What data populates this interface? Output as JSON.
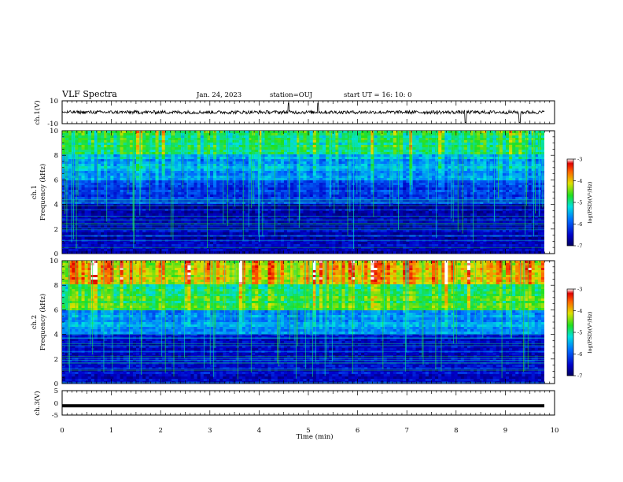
{
  "header": {
    "title": "VLF Spectra",
    "date": "Jan. 24, 2023",
    "station": "station=OUJ",
    "start_ut": "start  UT =   16: 10: 0"
  },
  "chart_data": [
    {
      "type": "line",
      "title": "",
      "ylabel": "ch.1(V)",
      "ylim": [
        -10,
        10
      ],
      "y_ticks": [
        "10",
        "-10"
      ],
      "xlim": [
        0,
        10
      ],
      "series": [
        {
          "values_description_free": true,
          "baseline": 0,
          "noise_amplitude": 1.5,
          "spikes_at_min": [
            4.6,
            5.2,
            8.2,
            9.3
          ]
        }
      ]
    },
    {
      "type": "heatmap",
      "ylabel": "ch.1",
      "ylabel2": "Frequency (kHz)",
      "ylim": [
        0,
        10
      ],
      "y_ticks": [
        "10",
        "8",
        "6",
        "4",
        "2",
        "0"
      ],
      "xlim": [
        0,
        10
      ],
      "colorbar": {
        "label": "log(PSD)(V²/Hz)",
        "range": [
          -7,
          -3
        ],
        "ticks": [
          "-3",
          "-4",
          "-5",
          "-6",
          "-7"
        ]
      },
      "bands_khz": [
        {
          "from": 0,
          "to": 4,
          "level": -6.6
        },
        {
          "from": 4,
          "to": 6,
          "level": -6.1
        },
        {
          "from": 6,
          "to": 8,
          "level": -5.5
        },
        {
          "from": 8,
          "to": 10,
          "level": -4.9
        }
      ]
    },
    {
      "type": "heatmap",
      "ylabel": "ch.2",
      "ylabel2": "Frequency (kHz)",
      "ylim": [
        0,
        10
      ],
      "y_ticks": [
        "10",
        "8",
        "6",
        "4",
        "2",
        "0"
      ],
      "xlim": [
        0,
        10
      ],
      "colorbar": {
        "label": "log(PSD)(V²/Hz)",
        "range": [
          -7,
          -3
        ],
        "ticks": [
          "-3",
          "-4",
          "-5",
          "-6",
          "-7"
        ]
      },
      "bands_khz": [
        {
          "from": 0,
          "to": 4,
          "level": -6.5
        },
        {
          "from": 4,
          "to": 6,
          "level": -5.6
        },
        {
          "from": 6,
          "to": 8,
          "level": -4.7
        },
        {
          "from": 8,
          "to": 10,
          "level": -3.9
        }
      ]
    },
    {
      "type": "line",
      "ylabel": "ch.3(V)",
      "ylim": [
        -5,
        5
      ],
      "y_ticks": [
        "5",
        "0",
        "-5"
      ],
      "xlim": [
        0,
        10
      ],
      "series": [
        {
          "constant_value": -1.2
        }
      ]
    }
  ],
  "x_axis": {
    "label": "Time  (min)",
    "ticks": [
      "0",
      "1",
      "2",
      "3",
      "4",
      "5",
      "6",
      "7",
      "8",
      "9",
      "10"
    ]
  }
}
